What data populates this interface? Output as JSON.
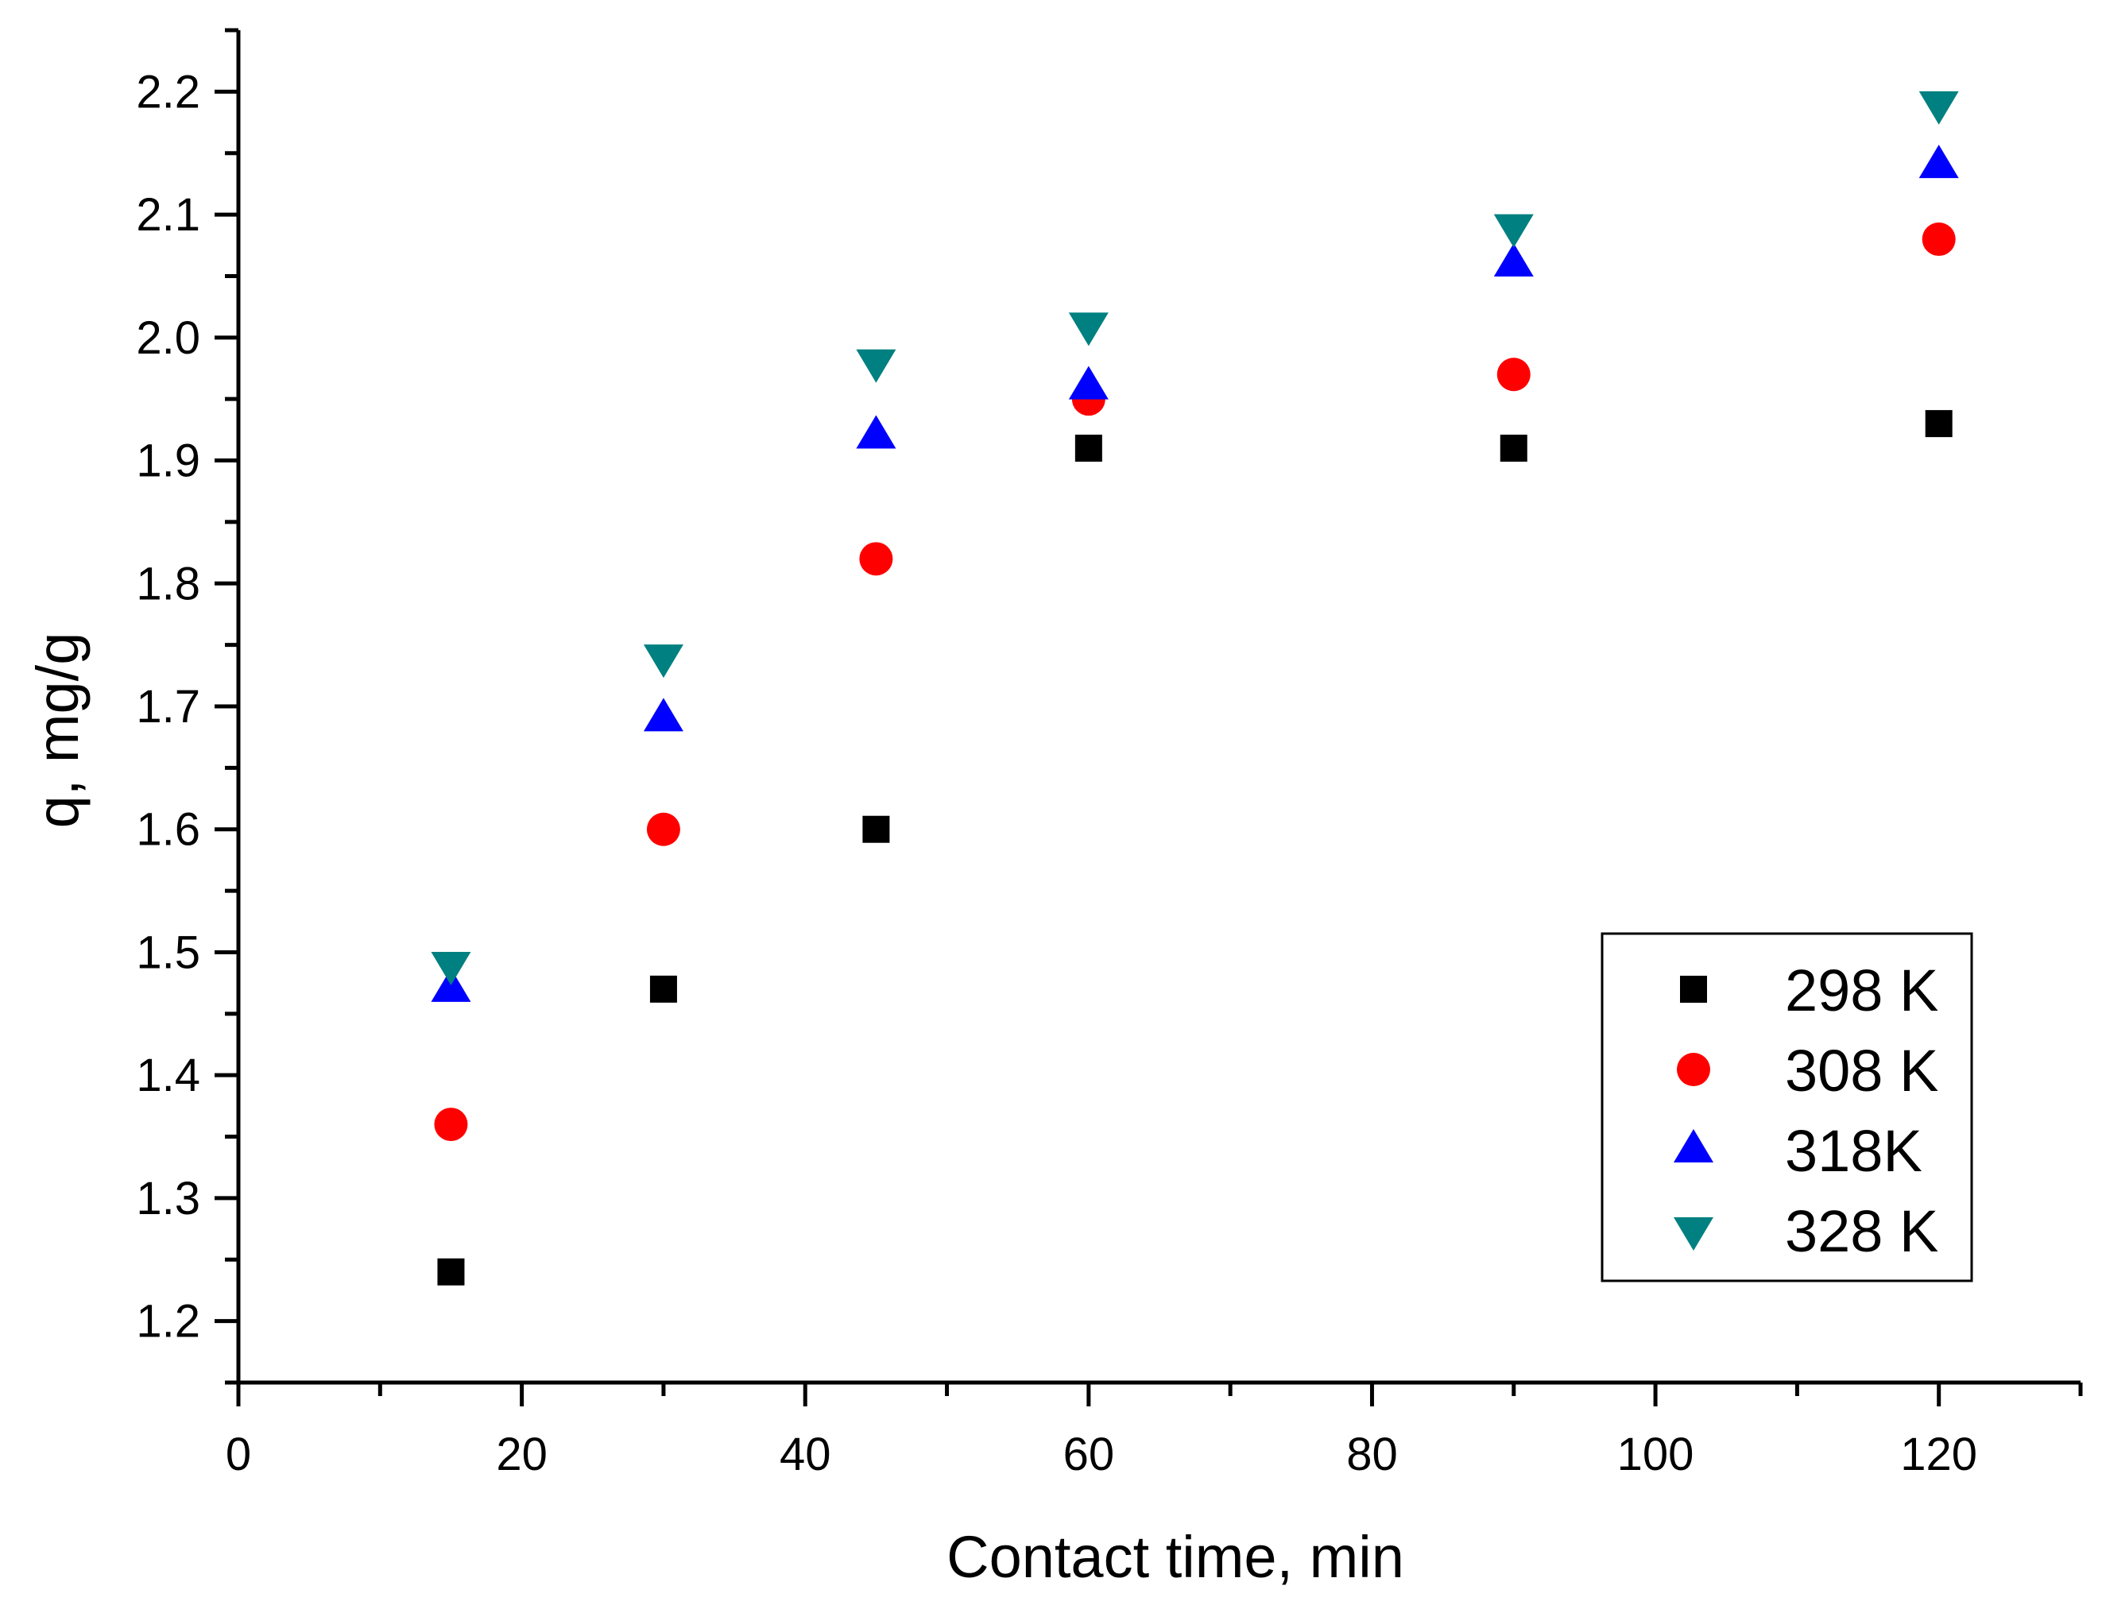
{
  "chart_data": {
    "type": "scatter",
    "title": "",
    "xlabel": "Contact time, min",
    "ylabel": "q, mg/g",
    "xlim": [
      0,
      130
    ],
    "ylim": [
      1.15,
      2.25
    ],
    "x_ticks": [
      "0",
      "20",
      "40",
      "60",
      "80",
      "100",
      "120"
    ],
    "x_tick_values": [
      0,
      20,
      40,
      60,
      80,
      100,
      120
    ],
    "y_ticks": [
      "1.2",
      "1.3",
      "1.4",
      "1.5",
      "1.6",
      "1.7",
      "1.8",
      "1.9",
      "2.0",
      "2.1",
      "2.2"
    ],
    "y_tick_values": [
      1.2,
      1.3,
      1.4,
      1.5,
      1.6,
      1.7,
      1.8,
      1.9,
      2.0,
      2.1,
      2.2
    ],
    "grid": false,
    "legend_position": "bottom-right",
    "x": [
      15,
      30,
      45,
      60,
      90,
      120
    ],
    "series": [
      {
        "name": "298 K",
        "marker": "square",
        "color": "#000000",
        "values": [
          1.24,
          1.47,
          1.6,
          1.91,
          1.91,
          1.93
        ]
      },
      {
        "name": "308 K",
        "marker": "circle",
        "color": "#ff0000",
        "values": [
          1.36,
          1.6,
          1.82,
          1.95,
          1.97,
          2.08
        ]
      },
      {
        "name": "318K",
        "marker": "triangle-up",
        "color": "#0000ff",
        "values": [
          1.47,
          1.69,
          1.92,
          1.96,
          2.06,
          2.14
        ]
      },
      {
        "name": "328 K",
        "marker": "triangle-down",
        "color": "#008080",
        "values": [
          1.49,
          1.74,
          1.98,
          2.01,
          2.09,
          2.19
        ]
      }
    ]
  }
}
